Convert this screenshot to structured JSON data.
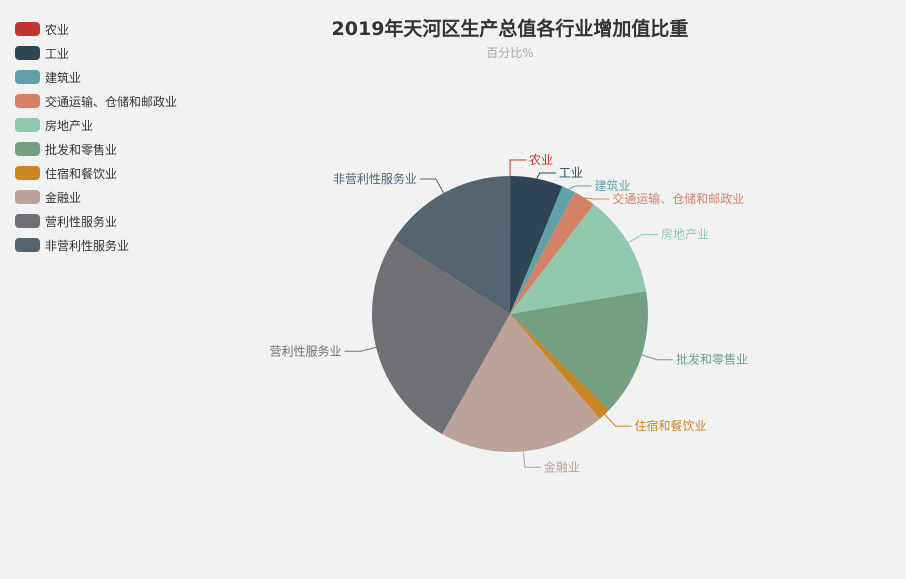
{
  "chart_data": {
    "type": "pie",
    "title": "2019年天河区生产总值各行业增加值比重",
    "subtitle": "百分比%",
    "legend_position": "top-left",
    "slices": [
      {
        "name": "农业",
        "value": 0.01,
        "color": "#c23531"
      },
      {
        "name": "工业",
        "value": 6.2,
        "color": "#2f4554"
      },
      {
        "name": "建筑业",
        "value": 1.6,
        "color": "#61a0a8"
      },
      {
        "name": "交通运输、仓储和邮政业",
        "value": 2.6,
        "color": "#d48265"
      },
      {
        "name": "房地产业",
        "value": 12.0,
        "color": "#91c7ae"
      },
      {
        "name": "批发和零售业",
        "value": 14.9,
        "color": "#749f83"
      },
      {
        "name": "住宿和餐饮业",
        "value": 1.5,
        "color": "#ca8622"
      },
      {
        "name": "金融业",
        "value": 19.5,
        "color": "#bda29a"
      },
      {
        "name": "营利性服务业",
        "value": 25.9,
        "color": "#6e7074"
      },
      {
        "name": "非营利性服务业",
        "value": 16.0,
        "color": "#546570"
      }
    ]
  }
}
